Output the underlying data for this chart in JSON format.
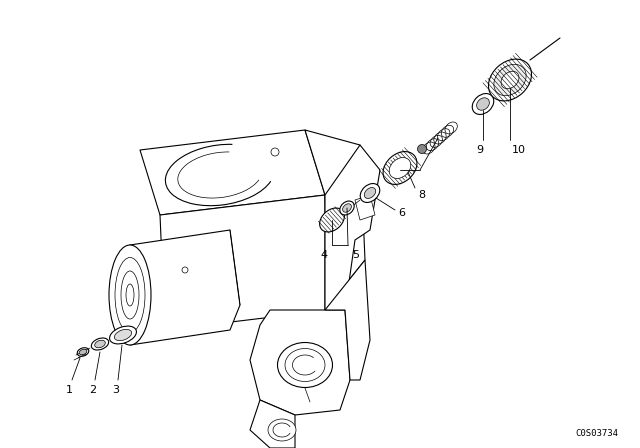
{
  "bg_color": "#ffffff",
  "line_color": "#000000",
  "fig_width": 6.4,
  "fig_height": 4.48,
  "dpi": 100,
  "catalog_number": "C0S03734",
  "font_size_label": 8,
  "font_size_catalog": 6.5
}
